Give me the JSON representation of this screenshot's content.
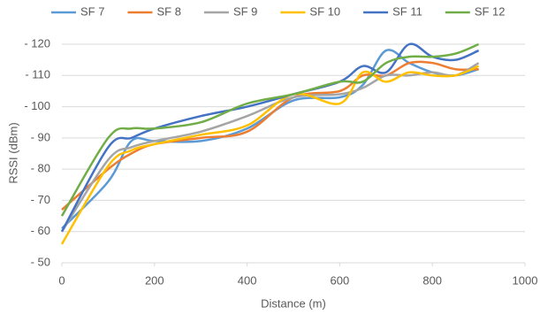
{
  "chart_data": {
    "type": "line",
    "x_label": "Distance (m)",
    "y_label": "RSSI (dBm)",
    "x": [
      0,
      100,
      150,
      200,
      300,
      400,
      500,
      600,
      650,
      700,
      750,
      800,
      850,
      900
    ],
    "series": [
      {
        "name": "SF 7",
        "color": "#5b9bd5",
        "values": [
          -61,
          -76,
          -89,
          -89,
          -89,
          -93,
          -102,
          -103,
          -107,
          -118,
          -114,
          -111,
          -110,
          -112
        ]
      },
      {
        "name": "SF 8",
        "color": "#ed7d31",
        "values": [
          -67,
          -80,
          -85,
          -88,
          -90,
          -92,
          -103,
          -105,
          -110,
          -110,
          -114,
          -114,
          -112,
          -112
        ]
      },
      {
        "name": "SF 9",
        "color": "#a5a5a5",
        "values": [
          -60,
          -83,
          -87,
          -89,
          -92,
          -97,
          -103,
          -104,
          -106,
          -110,
          -110,
          -111,
          -110,
          -114
        ]
      },
      {
        "name": "SF 10",
        "color": "#ffc000",
        "values": [
          -56,
          -81,
          -86,
          -88,
          -91,
          -94,
          -104,
          -101,
          -111,
          -108,
          -111,
          -110,
          -110,
          -113
        ]
      },
      {
        "name": "SF 11",
        "color": "#4472c4",
        "values": [
          -60,
          -87,
          -90,
          -93,
          -97,
          -100,
          -104,
          -108,
          -113,
          -111,
          -120,
          -116,
          -115,
          -118
        ]
      },
      {
        "name": "SF 12",
        "color": "#70ad47",
        "values": [
          -65,
          -90,
          -93,
          -93,
          -95,
          -101,
          -104,
          -108,
          -108,
          -114,
          -116,
          -116,
          -117,
          -120
        ]
      }
    ],
    "xlim": [
      0,
      1000
    ],
    "xticks": [
      0,
      200,
      400,
      600,
      800,
      1000
    ],
    "ylim": [
      -50,
      -120
    ],
    "yticks": [
      {
        "value": -50,
        "label": "- 50"
      },
      {
        "value": -60,
        "label": "- 60"
      },
      {
        "value": -70,
        "label": "- 70"
      },
      {
        "value": -80,
        "label": "- 80"
      },
      {
        "value": -90,
        "label": "- 90"
      },
      {
        "value": -100,
        "label": "- 100"
      },
      {
        "value": -110,
        "label": "- 110"
      },
      {
        "value": -120,
        "label": "- 120"
      }
    ],
    "grid": true
  }
}
